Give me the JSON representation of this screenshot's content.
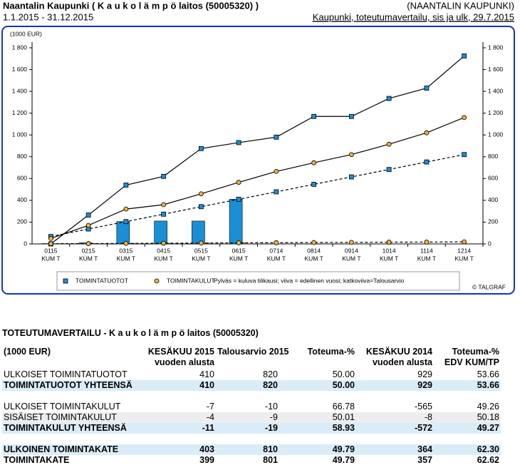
{
  "header": {
    "title": "Naantalin Kaupunki ( K a u k o l ä m p ö laitos (50005320) )",
    "org": "(NAANTALIN KAUPUNKI)",
    "period": "1.1.2015 - 31.12.2015",
    "report": "Kaupunki, toteutumavertailu, sis ja ulk, 29.7.2015"
  },
  "chart_data": {
    "type": "combo",
    "y_label": "(1000 EUR)",
    "categories": [
      "0115",
      "0215",
      "0315",
      "0415",
      "0515",
      "0615",
      "0714",
      "0814",
      "0914",
      "1014",
      "1114",
      "1214"
    ],
    "category_suffix": "KUM T",
    "ylim": [
      0,
      1800
    ],
    "yticks": [
      0,
      200,
      400,
      600,
      800,
      {
        "value": 1000,
        "label": "1 000"
      },
      {
        "value": 1200,
        "label": "1 200"
      },
      {
        "value": 1400,
        "label": "1 400"
      },
      {
        "value": 1600,
        "label": "1 600"
      },
      {
        "value": 1800,
        "label": "1 800"
      }
    ],
    "y2lim": [
      0,
      1800
    ],
    "y2ticks": [
      0,
      200,
      400,
      600,
      800,
      {
        "value": 1000,
        "label": "1 000"
      },
      {
        "value": 1200,
        "label": "1 200"
      },
      {
        "value": 1400,
        "label": "1 400"
      },
      {
        "value": 1600,
        "label": "1 600"
      },
      {
        "value": 1800,
        "label": "1 800"
      }
    ],
    "series": [
      {
        "name": "TOIMINTATUOTOT",
        "kind": "bar",
        "legend_marker": "square",
        "color": "#1b8fd6",
        "values": [
          3,
          10,
          205,
          210,
          210,
          410,
          null,
          null,
          null,
          null,
          null,
          null
        ]
      },
      {
        "name": "TOIMINTAKULUT",
        "kind": "bar",
        "legend_marker": "circle",
        "color": "#f2b23e",
        "values": [
          2,
          3,
          5,
          6,
          8,
          11,
          null,
          null,
          null,
          null,
          null,
          null
        ]
      },
      {
        "kind": "line",
        "marker": "square",
        "color": "#000000",
        "marker_color": "#1b8fd6",
        "values": [
          0,
          265,
          540,
          620,
          875,
          930,
          980,
          1170,
          1170,
          1335,
          1430,
          1725
        ]
      },
      {
        "kind": "line",
        "dashed": true,
        "marker": "square",
        "color": "#000000",
        "marker_color": "#1b8fd6",
        "values": [
          68,
          137,
          205,
          273,
          342,
          410,
          478,
          547,
          615,
          683,
          752,
          820
        ]
      },
      {
        "kind": "line",
        "marker": "circle",
        "color": "#000000",
        "marker_color": "#f2b23e",
        "values": [
          50,
          170,
          320,
          360,
          460,
          565,
          665,
          745,
          820,
          915,
          1020,
          1160
        ]
      },
      {
        "kind": "line",
        "dashed": true,
        "marker": "circle",
        "color": "#000000",
        "marker_color": "#f2b23e",
        "values": [
          2,
          3,
          5,
          6,
          8,
          10,
          11,
          13,
          14,
          16,
          17,
          19
        ]
      }
    ],
    "note": "Pylväs = kuluva tilikausi; viiva = edellinen vuosi; katkoviiva=Talousarvio",
    "credit": "© TALGRAF"
  },
  "table": {
    "title": "TOTEUTUMAVERTAILU - K a u k o l ä m p ö laitos (50005320)",
    "header": [
      [
        "(1000 EUR)"
      ],
      [
        "KESÄKUU 2015",
        "vuoden alusta"
      ],
      [
        "Talousarvio 2015"
      ],
      [
        "Toteuma-%"
      ],
      [
        "KESÄKUU 2014",
        "vuoden alusta"
      ],
      [
        "Toteuma-%",
        "EDV KUM/TP"
      ]
    ],
    "groups": [
      [
        {
          "label": "ULKOISET TOIMINTATUOTOT",
          "style": "plain",
          "cells": [
            "410",
            "820",
            "50.00",
            "929",
            "53.66"
          ]
        },
        {
          "label": "TOIMINTATUOTOT YHTEENSÄ",
          "style": "total",
          "cells": [
            "410",
            "820",
            "50.00",
            "929",
            "53.66"
          ]
        }
      ],
      [
        {
          "label": "ULKOISET TOIMINTAKULUT",
          "style": "plain",
          "cells": [
            "-7",
            "-10",
            "66.78",
            "-565",
            "49.26"
          ]
        },
        {
          "label": "SISÄISET TOIMINTAKULUT",
          "style": "alt",
          "cells": [
            "-4",
            "-9",
            "50.01",
            "-8",
            "50.18"
          ]
        },
        {
          "label": "TOIMINTAKULUT YHTEENSÄ",
          "style": "total",
          "cells": [
            "-11",
            "-19",
            "58.93",
            "-572",
            "49.27"
          ]
        }
      ],
      [
        {
          "label": "ULKOINEN TOIMINTAKATE",
          "style": "total",
          "cells": [
            "403",
            "810",
            "49.79",
            "364",
            "62.30"
          ]
        },
        {
          "label": "TOIMINTAKATE",
          "style": "strong",
          "cells": [
            "399",
            "801",
            "49.79",
            "357",
            "62.62"
          ]
        }
      ]
    ]
  }
}
